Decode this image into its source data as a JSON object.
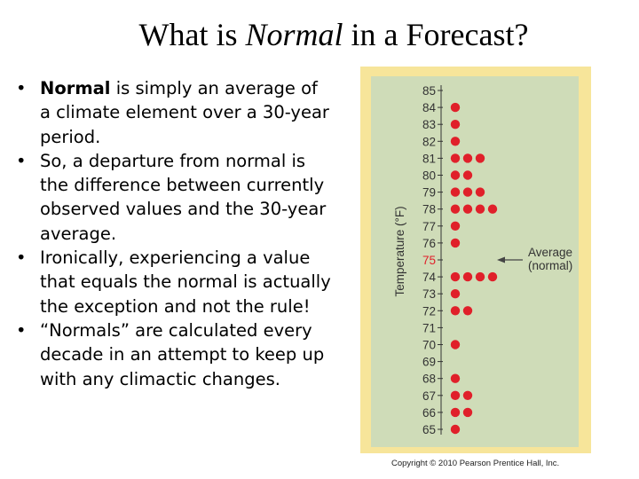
{
  "title": {
    "prefix": "What is ",
    "emphasis": "Normal",
    "suffix": " in a Forecast?"
  },
  "bullets": [
    {
      "bold": "Normal",
      "text": " is simply an average of a climate element over a 30-year period."
    },
    {
      "bold": "",
      "text": "So, a departure from normal is the difference between currently observed values and the 30-year average."
    },
    {
      "bold": "",
      "text": "Ironically, experiencing a value that equals the normal is actually the exception and not the rule!"
    },
    {
      "bold": "",
      "text": "“Normals” are calculated every decade in an attempt to keep up with any climactic changes."
    }
  ],
  "bullet_symbol": "•",
  "chart_data": {
    "type": "scatter",
    "title": "",
    "ylabel": "Temperature (°F)",
    "xlabel": "",
    "ylim": [
      65,
      85
    ],
    "ticks": [
      85,
      84,
      83,
      82,
      81,
      80,
      79,
      78,
      77,
      76,
      75,
      74,
      73,
      72,
      71,
      70,
      69,
      68,
      67,
      66,
      65
    ],
    "counts": [
      {
        "temp": 84,
        "count": 1
      },
      {
        "temp": 83,
        "count": 1
      },
      {
        "temp": 82,
        "count": 1
      },
      {
        "temp": 81,
        "count": 3
      },
      {
        "temp": 80,
        "count": 2
      },
      {
        "temp": 79,
        "count": 3
      },
      {
        "temp": 78,
        "count": 4
      },
      {
        "temp": 77,
        "count": 1
      },
      {
        "temp": 76,
        "count": 1
      },
      {
        "temp": 75,
        "count": 0
      },
      {
        "temp": 74,
        "count": 4
      },
      {
        "temp": 73,
        "count": 1
      },
      {
        "temp": 72,
        "count": 2
      },
      {
        "temp": 71,
        "count": 0
      },
      {
        "temp": 70,
        "count": 1
      },
      {
        "temp": 69,
        "count": 0
      },
      {
        "temp": 68,
        "count": 1
      },
      {
        "temp": 67,
        "count": 2
      },
      {
        "temp": 66,
        "count": 2
      },
      {
        "temp": 65,
        "count": 1
      }
    ],
    "normal_value": 75,
    "annotation": {
      "line1": "Average",
      "line2": "(normal)"
    },
    "colors": {
      "dot": "#e0202a",
      "highlight_tick": "#e0202a",
      "tick": "#333333"
    }
  },
  "copyright": "Copyright © 2010 Pearson Prentice Hall, Inc."
}
